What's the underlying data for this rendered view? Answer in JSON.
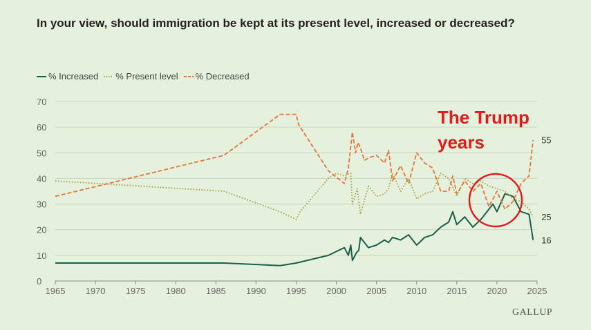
{
  "title": "In your view, should immigration be kept at its present level, increased or decreased?",
  "brand": "GALLUP",
  "annotation": {
    "line1": "The Trump",
    "line2": "years"
  },
  "colors": {
    "increased": "#1b5e4a",
    "present": "#a39a3a",
    "decreased": "#e0763a",
    "annotation": "#e21c1c",
    "grid": "#c9d6c0"
  },
  "chart_data": {
    "type": "line",
    "xlim": [
      1965,
      2025
    ],
    "ylim": [
      0,
      70
    ],
    "xticks": [
      1965,
      1970,
      1975,
      1980,
      1985,
      1990,
      1995,
      2000,
      2005,
      2010,
      2015,
      2020,
      2025
    ],
    "yticks": [
      0,
      10,
      20,
      30,
      40,
      50,
      60,
      70
    ],
    "grid": true,
    "legend_position": "top-left",
    "series": [
      {
        "name": "% Increased",
        "style": "solid",
        "points": [
          [
            1965,
            7
          ],
          [
            1986,
            7
          ],
          [
            1993,
            6
          ],
          [
            1995,
            7
          ],
          [
            1999,
            10
          ],
          [
            2001,
            13
          ],
          [
            2001.5,
            10
          ],
          [
            2001.8,
            14
          ],
          [
            2002,
            8
          ],
          [
            2002.5,
            11
          ],
          [
            2002.8,
            12
          ],
          [
            2003,
            17
          ],
          [
            2004,
            13
          ],
          [
            2005,
            14
          ],
          [
            2006,
            16
          ],
          [
            2006.5,
            15
          ],
          [
            2007,
            17
          ],
          [
            2008,
            16
          ],
          [
            2009,
            18
          ],
          [
            2010,
            14
          ],
          [
            2011,
            17
          ],
          [
            2012,
            18
          ],
          [
            2013,
            21
          ],
          [
            2014,
            23
          ],
          [
            2014.5,
            27
          ],
          [
            2015,
            22
          ],
          [
            2016,
            25
          ],
          [
            2017,
            21
          ],
          [
            2018,
            24
          ],
          [
            2019,
            28
          ],
          [
            2019.5,
            30
          ],
          [
            2020,
            27
          ],
          [
            2021,
            34
          ],
          [
            2022,
            33
          ],
          [
            2023,
            27
          ],
          [
            2024,
            26
          ],
          [
            2024.5,
            16
          ]
        ],
        "end_label": "16"
      },
      {
        "name": "% Present level",
        "style": "dotted",
        "points": [
          [
            1965,
            39
          ],
          [
            1986,
            35
          ],
          [
            1993,
            27
          ],
          [
            1995,
            24
          ],
          [
            1995.5,
            27
          ],
          [
            1999,
            40
          ],
          [
            2000,
            42
          ],
          [
            2001,
            41
          ],
          [
            2001.8,
            42
          ],
          [
            2002,
            30
          ],
          [
            2002.6,
            36
          ],
          [
            2003,
            26
          ],
          [
            2004,
            37
          ],
          [
            2005,
            33
          ],
          [
            2006,
            34
          ],
          [
            2006.5,
            36
          ],
          [
            2007,
            42
          ],
          [
            2008,
            35
          ],
          [
            2009,
            40
          ],
          [
            2010,
            32
          ],
          [
            2011,
            34
          ],
          [
            2012,
            35
          ],
          [
            2013,
            42
          ],
          [
            2014,
            40
          ],
          [
            2015,
            33
          ],
          [
            2016,
            40
          ],
          [
            2017,
            38
          ],
          [
            2018,
            39
          ],
          [
            2019,
            37
          ],
          [
            2020,
            36
          ],
          [
            2021,
            35
          ],
          [
            2022,
            32
          ],
          [
            2023,
            31
          ],
          [
            2024,
            28
          ],
          [
            2024.5,
            25
          ]
        ],
        "end_label": "25"
      },
      {
        "name": "% Decreased",
        "style": "dashed",
        "points": [
          [
            1965,
            33
          ],
          [
            1986,
            49
          ],
          [
            1993,
            65
          ],
          [
            1995,
            65
          ],
          [
            1995.3,
            61
          ],
          [
            1999,
            43
          ],
          [
            2001,
            38
          ],
          [
            2001.5,
            44
          ],
          [
            2002,
            58
          ],
          [
            2002.4,
            50
          ],
          [
            2002.7,
            54
          ],
          [
            2003,
            52
          ],
          [
            2003.5,
            47
          ],
          [
            2004,
            48
          ],
          [
            2005,
            49
          ],
          [
            2006,
            46
          ],
          [
            2006.5,
            51
          ],
          [
            2007,
            39
          ],
          [
            2008,
            45
          ],
          [
            2009,
            38
          ],
          [
            2010,
            50
          ],
          [
            2011,
            46
          ],
          [
            2012,
            44
          ],
          [
            2013,
            35
          ],
          [
            2014,
            35
          ],
          [
            2014.5,
            41
          ],
          [
            2015,
            34
          ],
          [
            2016,
            39
          ],
          [
            2017,
            35
          ],
          [
            2018,
            38
          ],
          [
            2019,
            29
          ],
          [
            2020,
            35
          ],
          [
            2021,
            28
          ],
          [
            2022,
            31
          ],
          [
            2023,
            38
          ],
          [
            2024,
            41
          ],
          [
            2024.5,
            55
          ]
        ],
        "end_label": "55"
      }
    ]
  }
}
